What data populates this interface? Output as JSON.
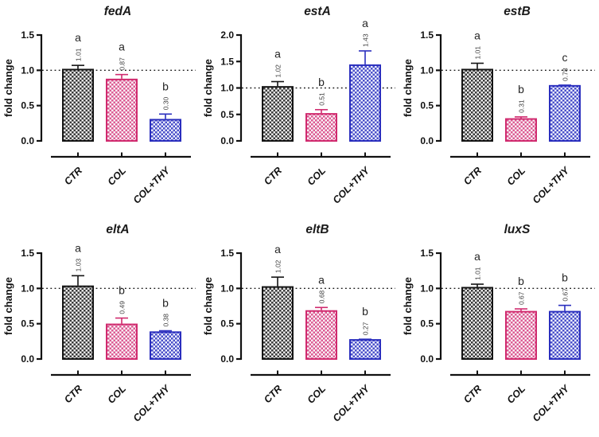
{
  "figure": {
    "background": "#ffffff",
    "reference_line_color": "#1a1a1a",
    "panel_count": 6
  },
  "series_styles": [
    {
      "name": "CTR",
      "border": "#141414",
      "check": "#3a3a3a",
      "check_bg": "#ececec"
    },
    {
      "name": "COL",
      "border": "#d02a6e",
      "check": "#dc5b92",
      "check_bg": "#f9eff5"
    },
    {
      "name": "COL+THY",
      "border": "#2a2ebe",
      "check": "#4a50c9",
      "check_bg": "#eceefc"
    }
  ],
  "chart_data": [
    {
      "type": "bar",
      "title": "fedA",
      "ylabel": "fold change",
      "xlabel": "",
      "categories": [
        "CTR",
        "COL",
        "COL+THY"
      ],
      "values": [
        1.01,
        0.87,
        0.3
      ],
      "value_labels": [
        "1.01",
        "0.87",
        "0.30"
      ],
      "errors": [
        0.06,
        0.07,
        0.08
      ],
      "sig_letters": [
        "a",
        "a",
        "b"
      ],
      "ylim": [
        0,
        1.5
      ],
      "yticks": [
        "0.0",
        "0.5",
        "1.0",
        "1.5"
      ],
      "reference_line": 1.0,
      "grid": false
    },
    {
      "type": "bar",
      "title": "estA",
      "ylabel": "fold change",
      "xlabel": "",
      "categories": [
        "CTR",
        "COL",
        "COL+THY"
      ],
      "values": [
        1.02,
        0.51,
        1.43
      ],
      "value_labels": [
        "1.02",
        "0.51",
        "1.43"
      ],
      "errors": [
        0.1,
        0.08,
        0.27
      ],
      "sig_letters": [
        "a",
        "b",
        "a"
      ],
      "ylim": [
        0,
        2.0
      ],
      "yticks": [
        "0.0",
        "0.5",
        "1.0",
        "1.5",
        "2.0"
      ],
      "reference_line": 1.0,
      "grid": false
    },
    {
      "type": "bar",
      "title": "estB",
      "ylabel": "fold change",
      "xlabel": "",
      "categories": [
        "CTR",
        "COL",
        "COL+THY"
      ],
      "values": [
        1.01,
        0.31,
        0.78
      ],
      "value_labels": [
        "1.01",
        "0.31",
        "0.78"
      ],
      "errors": [
        0.09,
        0.03,
        0.01
      ],
      "sig_letters": [
        "a",
        "b",
        "c"
      ],
      "ylim": [
        0,
        1.5
      ],
      "yticks": [
        "0.0",
        "0.5",
        "1.0",
        "1.5"
      ],
      "reference_line": 1.0,
      "grid": false
    },
    {
      "type": "bar",
      "title": "eltA",
      "ylabel": "fold change",
      "xlabel": "",
      "categories": [
        "CTR",
        "COL",
        "COL+THY"
      ],
      "values": [
        1.03,
        0.49,
        0.38
      ],
      "value_labels": [
        "1.03",
        "0.49",
        "0.38"
      ],
      "errors": [
        0.15,
        0.09,
        0.02
      ],
      "sig_letters": [
        "a",
        "b",
        "b"
      ],
      "ylim": [
        0,
        1.5
      ],
      "yticks": [
        "0.0",
        "0.5",
        "1.0",
        "1.5"
      ],
      "reference_line": 1.0,
      "grid": false
    },
    {
      "type": "bar",
      "title": "eltB",
      "ylabel": "fold change",
      "xlabel": "",
      "categories": [
        "CTR",
        "COL",
        "COL+THY"
      ],
      "values": [
        1.02,
        0.68,
        0.27
      ],
      "value_labels": [
        "1.02",
        "0.68",
        "0.27"
      ],
      "errors": [
        0.14,
        0.05,
        0.01
      ],
      "sig_letters": [
        "a",
        "a",
        "b"
      ],
      "ylim": [
        0,
        1.5
      ],
      "yticks": [
        "0.0",
        "0.5",
        "1.0",
        "1.5"
      ],
      "reference_line": 1.0,
      "grid": false
    },
    {
      "type": "bar",
      "title": "luxS",
      "ylabel": "fold change",
      "xlabel": "",
      "categories": [
        "CTR",
        "COL",
        "COL+THY"
      ],
      "values": [
        1.01,
        0.67,
        0.67
      ],
      "value_labels": [
        "1.01",
        "0.67",
        "0.67"
      ],
      "errors": [
        0.05,
        0.04,
        0.09
      ],
      "sig_letters": [
        "a",
        "b",
        "b"
      ],
      "ylim": [
        0,
        1.5
      ],
      "yticks": [
        "0.0",
        "0.5",
        "1.0",
        "1.5"
      ],
      "reference_line": 1.0,
      "grid": false
    }
  ]
}
